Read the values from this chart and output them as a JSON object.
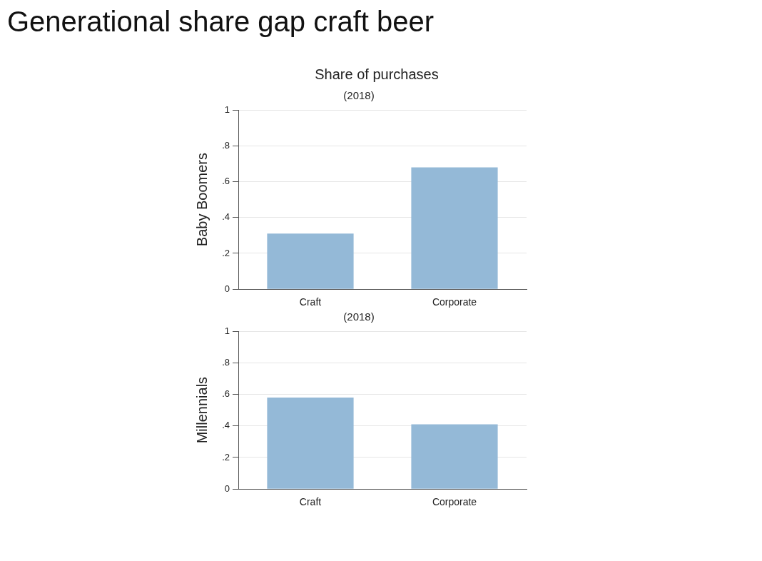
{
  "chart_data": [
    {
      "type": "bar",
      "title": "Generational share gap craft beer",
      "subtitle": "Share of purchases",
      "annotations": [
        "(2018)"
      ],
      "ylabel": "Baby Boomers",
      "categories": [
        "Craft",
        "Corporate"
      ],
      "values": [
        0.31,
        0.68
      ],
      "color": "#94b9d7",
      "ylim": [
        0,
        1
      ],
      "yticks": [
        {
          "value": 0,
          "label": "0"
        },
        {
          "value": 0.2,
          "label": ".2"
        },
        {
          "value": 0.4,
          "label": ".4"
        },
        {
          "value": 0.6,
          "label": ".6"
        },
        {
          "value": 0.8,
          "label": ".8"
        },
        {
          "value": 1,
          "label": "1"
        }
      ],
      "grid": "y",
      "legend": false
    },
    {
      "type": "bar",
      "annotations": [
        "(2018)"
      ],
      "ylabel": "Millennials",
      "categories": [
        "Craft",
        "Corporate"
      ],
      "values": [
        0.58,
        0.41
      ],
      "color": "#94b9d7",
      "ylim": [
        0,
        1
      ],
      "yticks": [
        {
          "value": 0,
          "label": "0"
        },
        {
          "value": 0.2,
          "label": ".2"
        },
        {
          "value": 0.4,
          "label": ".4"
        },
        {
          "value": 0.6,
          "label": ".6"
        },
        {
          "value": 0.8,
          "label": ".8"
        },
        {
          "value": 1,
          "label": "1"
        }
      ],
      "grid": "y",
      "legend": false
    }
  ]
}
